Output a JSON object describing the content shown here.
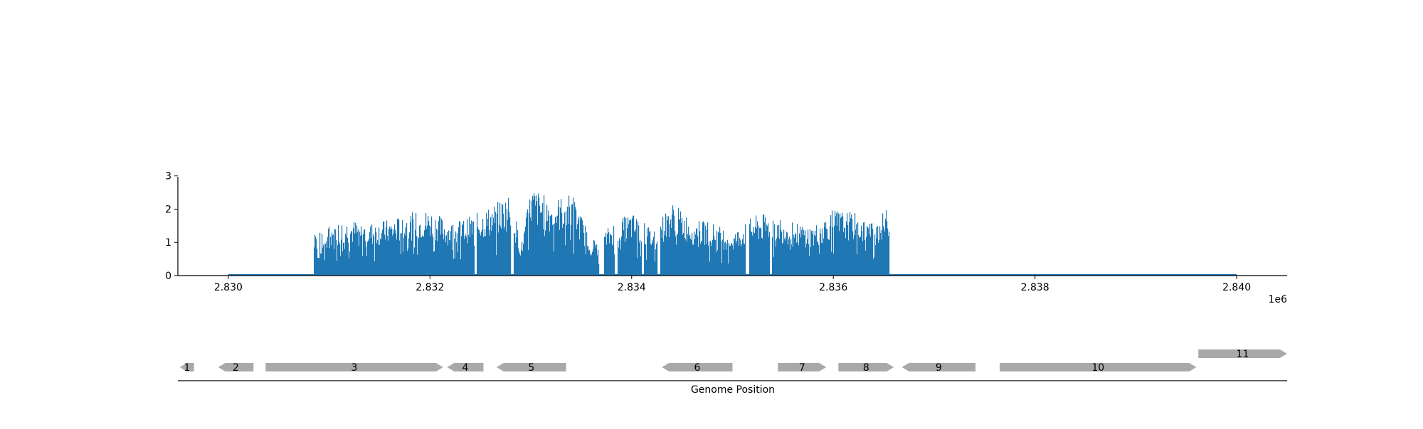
{
  "chart_data": [
    {
      "type": "area",
      "title": "",
      "xlabel": "",
      "ylabel": "",
      "x_offset_label": "1e6",
      "xlim": [
        2.8295,
        2.8405
      ],
      "ylim": [
        0,
        3.1
      ],
      "x_ticks": [
        2.83,
        2.832,
        2.834,
        2.836,
        2.838,
        2.84
      ],
      "x_tick_labels": [
        "2.830",
        "2.832",
        "2.834",
        "2.836",
        "2.838",
        "2.840"
      ],
      "y_ticks": [
        0,
        1,
        2,
        3
      ],
      "y_tick_labels": [
        "0",
        "1",
        "2",
        "3"
      ],
      "color": "#1f77b4",
      "coverage_start": 2.83,
      "coverage_end": 2.84,
      "coverage_profile": {
        "x": [
          2.83085,
          2.8309,
          2.831,
          2.8312,
          2.8314,
          2.8316,
          2.8318,
          2.832,
          2.8322,
          2.8324,
          2.8326,
          2.8328,
          2.8329,
          2.833,
          2.8332,
          2.8334,
          2.8336,
          2.8337,
          2.8338,
          2.834,
          2.8342,
          2.8344,
          2.8346,
          2.8348,
          2.835,
          2.8352,
          2.8354,
          2.8356,
          2.8358,
          2.836,
          2.8362,
          2.8364,
          2.83655
        ],
        "y": [
          1.2,
          0.8,
          1.6,
          1.7,
          1.6,
          1.7,
          1.9,
          2.0,
          1.6,
          1.8,
          2.1,
          2.5,
          0.9,
          2.7,
          2.3,
          2.5,
          1.1,
          1.2,
          1.6,
          1.9,
          1.4,
          2.2,
          1.7,
          1.6,
          1.3,
          1.8,
          1.9,
          1.6,
          1.5,
          2.0,
          1.9,
          1.6,
          2.1
        ]
      },
      "gaps": [
        [
          2.83244,
          2.83246
        ],
        [
          2.8328,
          2.83283
        ],
        [
          2.83367,
          2.83372
        ],
        [
          2.83383,
          2.83386
        ],
        [
          2.8341,
          2.83412
        ],
        [
          2.83425,
          2.83428
        ],
        [
          2.83513,
          2.83516
        ],
        [
          2.83537,
          2.83539
        ]
      ]
    },
    {
      "type": "gene_track",
      "xlabel": "Genome Position",
      "genes": [
        {
          "label": "1",
          "start": 2.82952,
          "end": 2.82966,
          "strand": "-",
          "row": 0
        },
        {
          "label": "2",
          "start": 2.8299,
          "end": 2.83025,
          "strand": "-",
          "row": 0
        },
        {
          "label": "3",
          "start": 2.83037,
          "end": 2.83213,
          "strand": "+",
          "row": 0
        },
        {
          "label": "4",
          "start": 2.83217,
          "end": 2.83253,
          "strand": "-",
          "row": 0
        },
        {
          "label": "5",
          "start": 2.83266,
          "end": 2.83335,
          "strand": "-",
          "row": 0
        },
        {
          "label": "6",
          "start": 2.8343,
          "end": 2.835,
          "strand": "-",
          "row": 0
        },
        {
          "label": "7",
          "start": 2.83545,
          "end": 2.83593,
          "strand": "+",
          "row": 0
        },
        {
          "label": "8",
          "start": 2.83605,
          "end": 2.8366,
          "strand": "+",
          "row": 0
        },
        {
          "label": "9",
          "start": 2.83668,
          "end": 2.83741,
          "strand": "-",
          "row": 0
        },
        {
          "label": "10",
          "start": 2.83765,
          "end": 2.8396,
          "strand": "+",
          "row": 0
        },
        {
          "label": "11",
          "start": 2.83962,
          "end": 2.8405,
          "strand": "+",
          "row": 1
        }
      ],
      "gene_color": "#a9a9a9"
    }
  ]
}
